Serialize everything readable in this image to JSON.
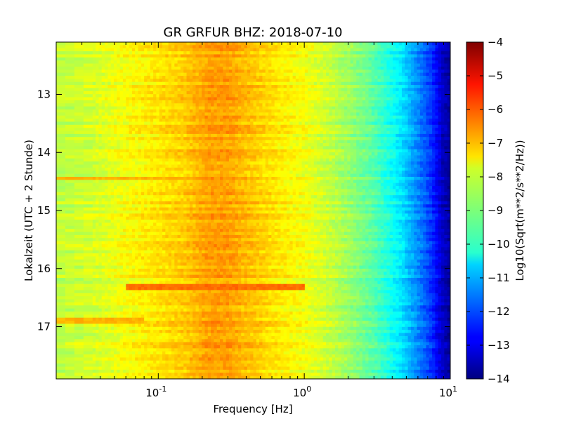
{
  "chart_data": {
    "type": "heatmap",
    "title": "GR GRFUR BHZ: 2018-07-10",
    "xlabel": "Frequency [Hz]",
    "ylabel": "Lokalzeit (UTC + 2 Stunde)",
    "x_scale": "log",
    "xlim": [
      0.02,
      10
    ],
    "x_ticks": [
      {
        "value": 0.1,
        "base": "10",
        "exp": "-1"
      },
      {
        "value": 1,
        "base": "10",
        "exp": "0"
      },
      {
        "value": 10,
        "base": "10",
        "exp": "1"
      }
    ],
    "ylim": [
      12.1,
      17.9
    ],
    "y_inverted": true,
    "y_ticks": [
      13,
      14,
      15,
      16,
      17
    ],
    "y_tick_labels": [
      "13",
      "14",
      "15",
      "16",
      "17"
    ],
    "colorbar": {
      "label": "Log10(Sqrt(m**2/s**2/Hz))",
      "vmin": -14,
      "vmax": -4,
      "ticks": [
        -4,
        -5,
        -6,
        -7,
        -8,
        -9,
        -10,
        -11,
        -12,
        -13,
        -14
      ],
      "tick_labels": [
        "−4",
        "−5",
        "−6",
        "−7",
        "−8",
        "−9",
        "−10",
        "−11",
        "−12",
        "−13",
        "−14"
      ],
      "colormap": "jet"
    },
    "profile": {
      "freq": [
        0.02,
        0.04,
        0.06,
        0.1,
        0.15,
        0.22,
        0.3,
        0.45,
        0.7,
        1.0,
        1.5,
        2.0,
        3.0,
        4.5,
        6.0,
        7.5,
        9.0,
        10.0
      ],
      "value": [
        -8.4,
        -8.1,
        -7.8,
        -7.5,
        -7.25,
        -6.8,
        -6.8,
        -7.2,
        -7.6,
        -7.85,
        -8.3,
        -8.7,
        -9.4,
        -10.4,
        -11.4,
        -12.3,
        -13.4,
        -13.7
      ]
    },
    "features": [
      {
        "name": "horizontal band",
        "time": 14.45,
        "f_min": 0.02,
        "f_max": 0.3,
        "value": -7.0
      },
      {
        "name": "horizontal line",
        "time": 16.33,
        "f_min": 0.06,
        "f_max": 1.0,
        "value": -6.3
      },
      {
        "name": "horizontal band",
        "time": 16.9,
        "f_min": 0.02,
        "f_max": 0.08,
        "value": -7.0
      }
    ]
  }
}
